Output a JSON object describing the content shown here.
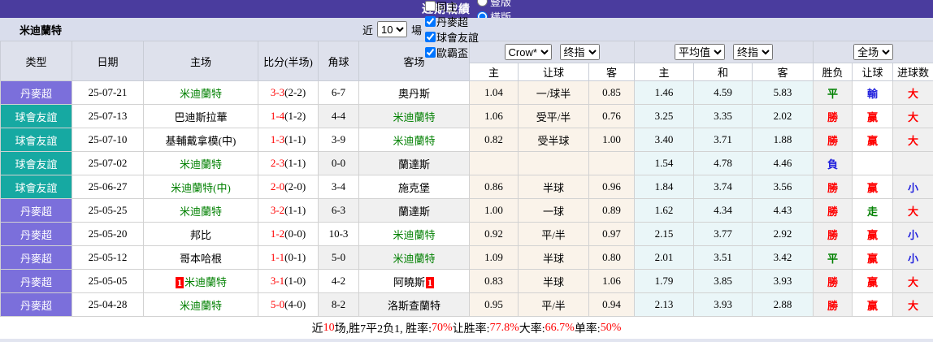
{
  "topbar": {
    "title": "近期戰績",
    "radios": [
      {
        "label": "豎版",
        "checked": false
      },
      {
        "label": "橫版",
        "checked": true
      }
    ]
  },
  "filter": {
    "team": "米迪蘭特",
    "near_label": "近",
    "matches_select": "10",
    "matches_label": "場",
    "checkboxes": [
      {
        "label": "同主",
        "checked": false
      },
      {
        "label": "丹麥超",
        "checked": true
      },
      {
        "label": "球會友誼",
        "checked": true
      },
      {
        "label": "歐霸盃",
        "checked": true
      }
    ]
  },
  "table": {
    "left_headers": [
      "类型",
      "日期",
      "主场",
      "比分(半场)",
      "角球",
      "客场"
    ],
    "dropdowns": {
      "odds_company": "Crow*",
      "odds_stage": "终指",
      "avg_source": "平均值",
      "avg_stage": "终指",
      "scope": "全场"
    },
    "sub_headers": [
      "主",
      "让球",
      "客",
      "主",
      "和",
      "客",
      "胜负",
      "让球",
      "进球数"
    ],
    "rows": [
      {
        "league": "丹麥超",
        "style": "purple",
        "date": "25-07-21",
        "home": "米迪蘭特",
        "home_green": true,
        "home_badge": "",
        "score_ft": "3-3",
        "score_ht": "(2-2)",
        "corners": "6-7",
        "away": "奧丹斯",
        "away_green": false,
        "away_badge": "",
        "odds": [
          "1.04",
          "一/球半",
          "0.85"
        ],
        "avg": [
          "1.46",
          "4.59",
          "5.83"
        ],
        "results": [
          {
            "t": "平",
            "c": "green"
          },
          {
            "t": "輸",
            "c": "blue"
          },
          {
            "t": "大",
            "c": "red"
          }
        ]
      },
      {
        "league": "球會友誼",
        "style": "teal",
        "date": "25-07-13",
        "home": "巴迪斯拉華",
        "home_green": false,
        "home_badge": "",
        "score_ft": "1-4",
        "score_ht": "(1-2)",
        "corners": "4-4",
        "away": "米迪蘭特",
        "away_green": true,
        "away_badge": "",
        "odds": [
          "1.06",
          "受平/半",
          "0.76"
        ],
        "avg": [
          "3.25",
          "3.35",
          "2.02"
        ],
        "results": [
          {
            "t": "勝",
            "c": "red"
          },
          {
            "t": "赢",
            "c": "red"
          },
          {
            "t": "大",
            "c": "red"
          }
        ]
      },
      {
        "league": "球會友誼",
        "style": "teal",
        "date": "25-07-10",
        "home": "基輔戴拿模(中)",
        "home_green": false,
        "home_badge": "",
        "score_ft": "1-3",
        "score_ht": "(1-1)",
        "corners": "3-9",
        "away": "米迪蘭特",
        "away_green": true,
        "away_badge": "",
        "odds": [
          "0.82",
          "受半球",
          "1.00"
        ],
        "avg": [
          "3.40",
          "3.71",
          "1.88"
        ],
        "results": [
          {
            "t": "勝",
            "c": "red"
          },
          {
            "t": "赢",
            "c": "red"
          },
          {
            "t": "大",
            "c": "red"
          }
        ]
      },
      {
        "league": "球會友誼",
        "style": "teal",
        "date": "25-07-02",
        "home": "米迪蘭特",
        "home_green": true,
        "home_badge": "",
        "score_ft": "2-3",
        "score_ht": "(1-1)",
        "corners": "0-0",
        "away": "蘭達斯",
        "away_green": false,
        "away_badge": "",
        "odds": [
          "",
          "",
          ""
        ],
        "avg": [
          "1.54",
          "4.78",
          "4.46"
        ],
        "results": [
          {
            "t": "負",
            "c": "blue"
          },
          {
            "t": "",
            "c": ""
          },
          {
            "t": "",
            "c": ""
          }
        ]
      },
      {
        "league": "球會友誼",
        "style": "teal",
        "date": "25-06-27",
        "home": "米迪蘭特(中)",
        "home_green": true,
        "home_badge": "",
        "score_ft": "2-0",
        "score_ht": "(2-0)",
        "corners": "3-4",
        "away": "施克堡",
        "away_green": false,
        "away_badge": "",
        "odds": [
          "0.86",
          "半球",
          "0.96"
        ],
        "avg": [
          "1.84",
          "3.74",
          "3.56"
        ],
        "results": [
          {
            "t": "勝",
            "c": "red"
          },
          {
            "t": "赢",
            "c": "red"
          },
          {
            "t": "小",
            "c": "blue"
          }
        ]
      },
      {
        "league": "丹麥超",
        "style": "purple",
        "date": "25-05-25",
        "home": "米迪蘭特",
        "home_green": true,
        "home_badge": "",
        "score_ft": "3-2",
        "score_ht": "(1-1)",
        "corners": "6-3",
        "away": "蘭達斯",
        "away_green": false,
        "away_badge": "",
        "odds": [
          "1.00",
          "一球",
          "0.89"
        ],
        "avg": [
          "1.62",
          "4.34",
          "4.43"
        ],
        "results": [
          {
            "t": "勝",
            "c": "red"
          },
          {
            "t": "走",
            "c": "green"
          },
          {
            "t": "大",
            "c": "red"
          }
        ]
      },
      {
        "league": "丹麥超",
        "style": "purple",
        "date": "25-05-20",
        "home": "邦比",
        "home_green": false,
        "home_badge": "",
        "score_ft": "1-2",
        "score_ht": "(0-0)",
        "corners": "10-3",
        "away": "米迪蘭特",
        "away_green": true,
        "away_badge": "",
        "odds": [
          "0.92",
          "平/半",
          "0.97"
        ],
        "avg": [
          "2.15",
          "3.77",
          "2.92"
        ],
        "results": [
          {
            "t": "勝",
            "c": "red"
          },
          {
            "t": "赢",
            "c": "red"
          },
          {
            "t": "小",
            "c": "blue"
          }
        ]
      },
      {
        "league": "丹麥超",
        "style": "purple",
        "date": "25-05-12",
        "home": "哥本哈根",
        "home_green": false,
        "home_badge": "",
        "score_ft": "1-1",
        "score_ht": "(0-1)",
        "corners": "5-0",
        "away": "米迪蘭特",
        "away_green": true,
        "away_badge": "",
        "odds": [
          "1.09",
          "半球",
          "0.80"
        ],
        "avg": [
          "2.01",
          "3.51",
          "3.42"
        ],
        "results": [
          {
            "t": "平",
            "c": "green"
          },
          {
            "t": "赢",
            "c": "red"
          },
          {
            "t": "小",
            "c": "blue"
          }
        ]
      },
      {
        "league": "丹麥超",
        "style": "purple",
        "date": "25-05-05",
        "home": "米迪蘭特",
        "home_green": true,
        "home_badge": "1",
        "score_ft": "3-1",
        "score_ht": "(1-0)",
        "corners": "4-2",
        "away": "阿曉斯",
        "away_green": false,
        "away_badge": "1",
        "odds": [
          "0.83",
          "半球",
          "1.06"
        ],
        "avg": [
          "1.79",
          "3.85",
          "3.93"
        ],
        "results": [
          {
            "t": "勝",
            "c": "red"
          },
          {
            "t": "赢",
            "c": "red"
          },
          {
            "t": "大",
            "c": "red"
          }
        ]
      },
      {
        "league": "丹麥超",
        "style": "purple",
        "date": "25-04-28",
        "home": "米迪蘭特",
        "home_green": true,
        "home_badge": "",
        "score_ft": "5-0",
        "score_ht": "(4-0)",
        "corners": "8-2",
        "away": "洛斯查蘭特",
        "away_green": false,
        "away_badge": "",
        "odds": [
          "0.95",
          "平/半",
          "0.94"
        ],
        "avg": [
          "2.13",
          "3.93",
          "2.88"
        ],
        "results": [
          {
            "t": "勝",
            "c": "red"
          },
          {
            "t": "赢",
            "c": "red"
          },
          {
            "t": "大",
            "c": "red"
          }
        ]
      }
    ]
  },
  "summary": {
    "segments": [
      {
        "t": "近",
        "c": "black"
      },
      {
        "t": "10",
        "c": "red"
      },
      {
        "t": "场,胜7平2负1, 胜率:",
        "c": "black"
      },
      {
        "t": "70%",
        "c": "red"
      },
      {
        "t": " 让胜率:",
        "c": "black"
      },
      {
        "t": "77.8%",
        "c": "red"
      },
      {
        "t": " 大率:",
        "c": "black"
      },
      {
        "t": "66.7%",
        "c": "red"
      },
      {
        "t": " 单率:",
        "c": "black"
      },
      {
        "t": "50%",
        "c": "red"
      }
    ]
  },
  "colors": {
    "topbar_bg": "#4a3c9e",
    "header_bg": "#dee1ec",
    "filter_bg": "#d9ddec",
    "league_purple": "#7b6fdb",
    "friendly_teal": "#16a9a2",
    "odds_col_bg": "#faf3ea",
    "avg_col_bg": "#eaf6f8",
    "accent_red": "#ff0000",
    "accent_green": "#008000",
    "accent_blue": "#2222dd"
  }
}
